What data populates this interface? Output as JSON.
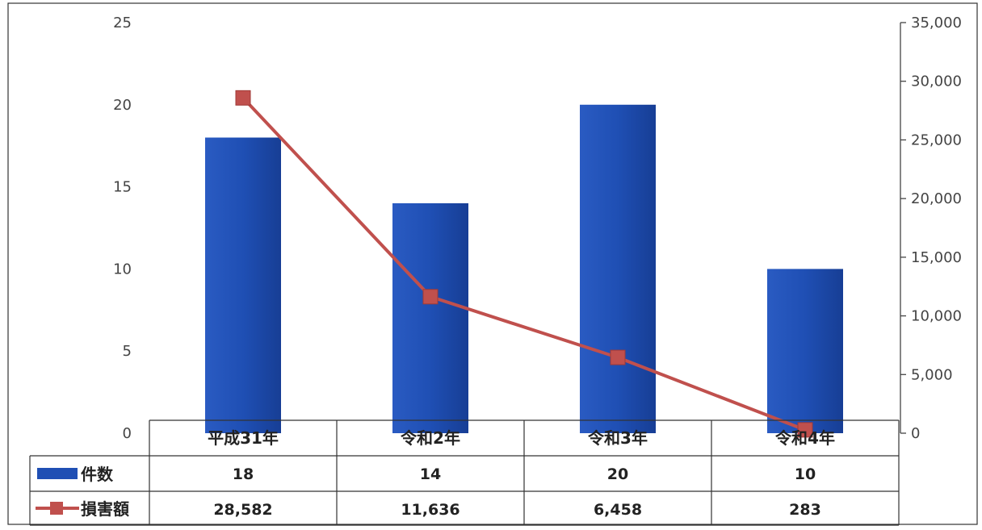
{
  "chart_data": {
    "type": "bar",
    "categories": [
      "平成31年",
      "令和2年",
      "令和3年",
      "令和4年"
    ],
    "series": [
      {
        "name": "件数",
        "kind": "bar",
        "axis": "left",
        "values": [
          18,
          14,
          20,
          10
        ],
        "color": "#1F4FB4"
      },
      {
        "name": "損害額",
        "kind": "line",
        "axis": "right",
        "values": [
          28582,
          11636,
          6458,
          283
        ],
        "color": "#C0504D"
      }
    ],
    "table_values": [
      [
        "18",
        "14",
        "20",
        "10"
      ],
      [
        "28,582",
        "11,636",
        "6,458",
        "283"
      ]
    ],
    "y_left": {
      "ylim": [
        0,
        25
      ],
      "ticks": [
        "0",
        "5",
        "10",
        "15",
        "20",
        "25"
      ]
    },
    "y_right": {
      "ylim": [
        0,
        35000
      ],
      "ticks": [
        "0",
        "5,000",
        "10,000",
        "15,000",
        "20,000",
        "25,000",
        "30,000",
        "35,000"
      ]
    },
    "grid": false,
    "legend": "data-table"
  }
}
